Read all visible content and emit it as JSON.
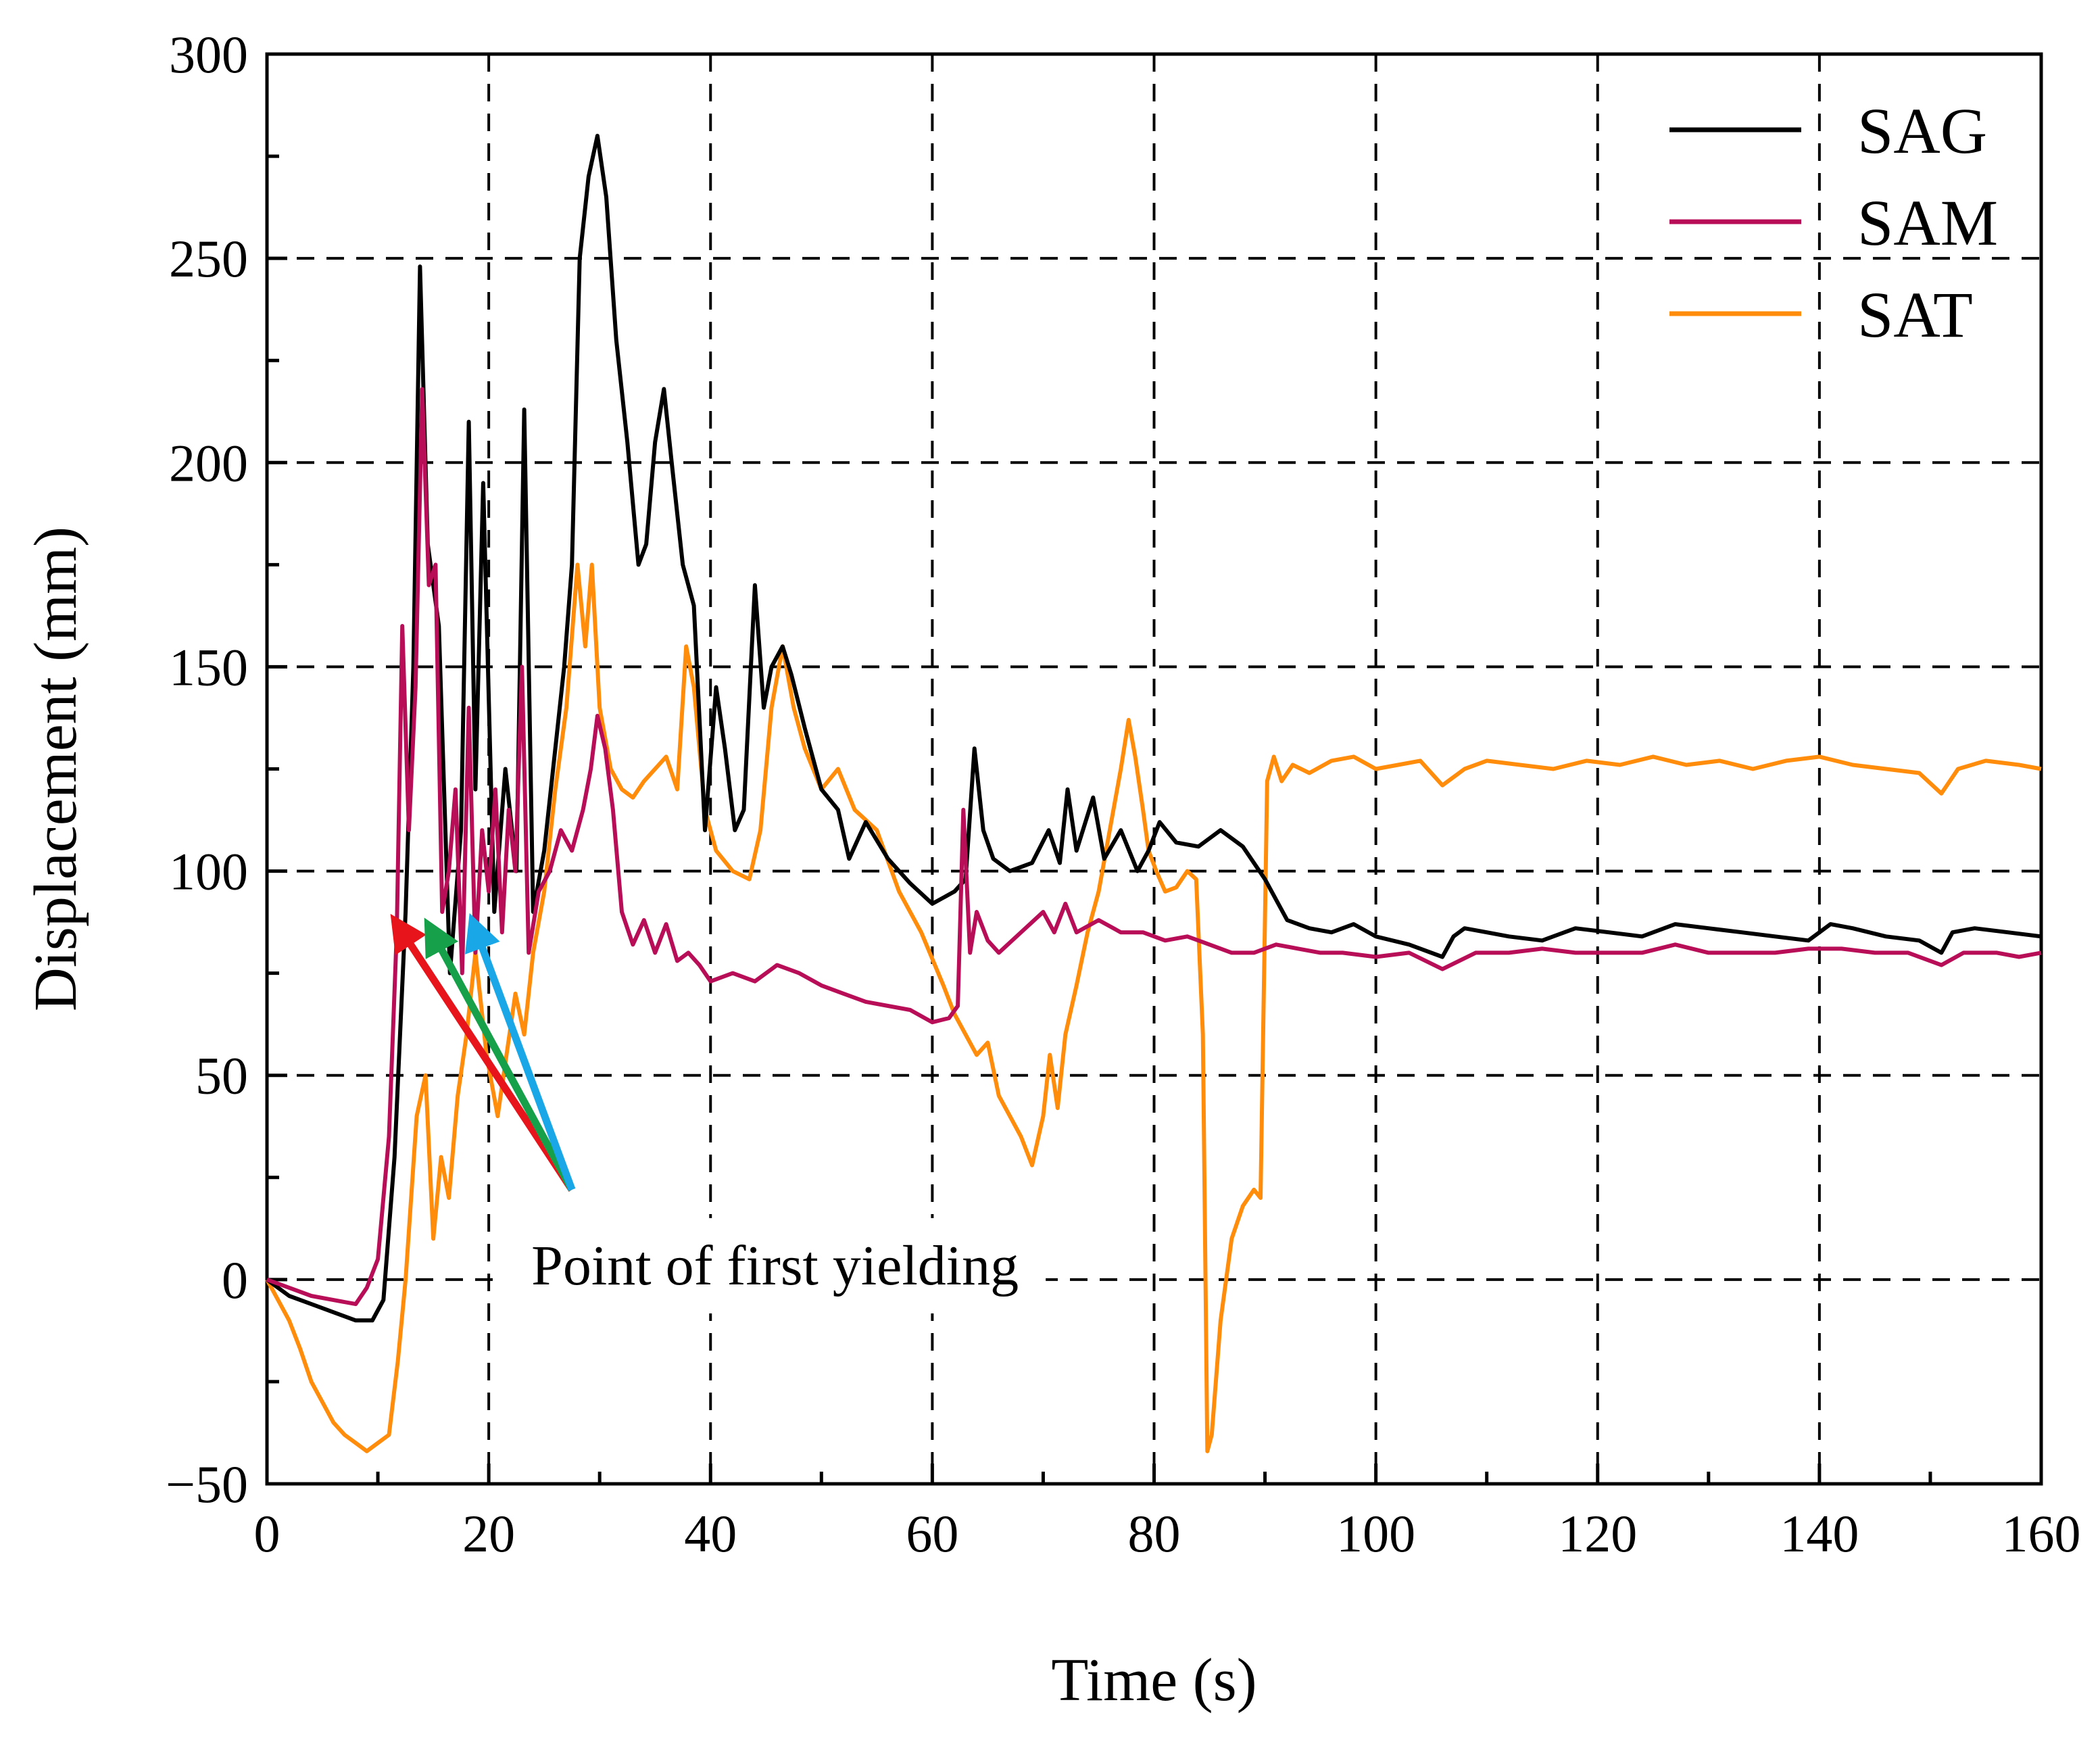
{
  "chart_data": {
    "type": "line",
    "title": "",
    "xlabel": "Time (s)",
    "ylabel": "Displacement (mm)",
    "xlim": [
      0,
      160
    ],
    "ylim": [
      -50,
      300
    ],
    "xticks": [
      0,
      20,
      40,
      60,
      80,
      100,
      120,
      140,
      160
    ],
    "yticks": [
      -50,
      0,
      50,
      100,
      150,
      200,
      250,
      300
    ],
    "xtick_labels": [
      "0",
      "20",
      "40",
      "60",
      "80",
      "100",
      "120",
      "140",
      "160"
    ],
    "ytick_labels": [
      "−50",
      "0",
      "50",
      "100",
      "150",
      "200",
      "250",
      "300"
    ],
    "grid": true,
    "legend_position": "top-right",
    "series": [
      {
        "name": "SAG",
        "color": "#000000",
        "x": [
          0,
          2,
          4,
          6,
          8,
          9.5,
          10.5,
          11.5,
          12.5,
          13.2,
          13.8,
          14.5,
          15.5,
          16.5,
          17.5,
          18.2,
          18.8,
          19.5,
          20.5,
          21.5,
          22.5,
          23.2,
          24,
          25,
          26,
          26.8,
          27.5,
          28.2,
          29,
          29.8,
          30.6,
          31.5,
          32.5,
          33.5,
          34.2,
          35,
          35.8,
          36.5,
          37.5,
          38.5,
          39.5,
          40.5,
          41.3,
          42.2,
          43,
          44,
          44.8,
          45.5,
          46.5,
          47.3,
          48.5,
          50,
          51.5,
          52.5,
          54,
          56,
          58,
          60,
          62,
          63,
          63.8,
          64.6,
          65.5,
          67,
          69,
          70.5,
          71.5,
          72.2,
          73,
          74.5,
          75.5,
          77,
          78.5,
          79.5,
          80.5,
          82,
          84,
          86,
          88,
          90,
          92,
          94,
          96,
          98,
          100,
          103,
          106,
          107,
          108,
          110,
          112,
          115,
          118,
          121,
          124,
          127,
          130,
          133,
          136,
          139,
          141,
          143,
          146,
          149,
          151,
          152,
          154,
          157,
          160
        ],
        "values": [
          0,
          -4,
          -6,
          -8,
          -10,
          -10,
          -5,
          30,
          90,
          150,
          248,
          180,
          160,
          75,
          110,
          210,
          120,
          195,
          90,
          125,
          100,
          213,
          90,
          105,
          130,
          150,
          175,
          250,
          270,
          280,
          265,
          230,
          205,
          175,
          180,
          205,
          218,
          200,
          175,
          165,
          110,
          145,
          130,
          110,
          115,
          170,
          140,
          150,
          155,
          148,
          135,
          120,
          115,
          103,
          112,
          103,
          97,
          92,
          95,
          98,
          130,
          110,
          103,
          100,
          102,
          110,
          102,
          120,
          105,
          118,
          103,
          110,
          100,
          105,
          112,
          107,
          106,
          110,
          106,
          98,
          88,
          86,
          85,
          87,
          84,
          82,
          79,
          84,
          86,
          85,
          84,
          83,
          86,
          85,
          84,
          87,
          86,
          85,
          84,
          83,
          87,
          86,
          84,
          83,
          80,
          85,
          86,
          85,
          84
        ]
      },
      {
        "name": "SAM",
        "color": "#B80D57",
        "x": [
          0,
          2,
          4,
          6,
          8,
          9,
          10,
          11,
          11.7,
          12.2,
          12.8,
          13.4,
          14,
          14.6,
          15.2,
          15.8,
          16.4,
          17,
          17.6,
          18.2,
          18.8,
          19.4,
          20,
          20.6,
          21.2,
          21.8,
          22.4,
          23,
          23.6,
          24.5,
          25.5,
          26.5,
          27.5,
          28.5,
          29.2,
          29.8,
          30.5,
          31.2,
          32,
          33,
          34,
          35,
          36,
          37,
          38,
          39,
          40,
          42,
          44,
          46,
          48,
          50,
          52,
          54,
          56,
          58,
          60,
          61.5,
          62.3,
          62.8,
          63.4,
          64,
          65,
          66,
          68,
          70,
          71,
          72,
          73,
          75,
          77,
          79,
          81,
          83,
          85,
          87,
          89,
          91,
          93,
          95,
          97,
          100,
          103,
          106,
          109,
          112,
          115,
          118,
          121,
          124,
          127,
          130,
          133,
          136,
          139,
          142,
          145,
          148,
          151,
          153,
          156,
          158,
          160
        ],
        "values": [
          0,
          -2,
          -4,
          -5,
          -6,
          -2,
          5,
          35,
          85,
          160,
          110,
          145,
          218,
          170,
          175,
          90,
          100,
          120,
          75,
          140,
          80,
          110,
          95,
          120,
          85,
          115,
          100,
          150,
          80,
          95,
          100,
          110,
          105,
          115,
          125,
          138,
          130,
          115,
          90,
          82,
          88,
          80,
          87,
          78,
          80,
          77,
          73,
          75,
          73,
          77,
          75,
          72,
          70,
          68,
          67,
          66,
          63,
          64,
          67,
          115,
          80,
          90,
          83,
          80,
          85,
          90,
          85,
          92,
          85,
          88,
          85,
          85,
          83,
          84,
          82,
          80,
          80,
          82,
          81,
          80,
          80,
          79,
          80,
          76,
          80,
          80,
          81,
          80,
          80,
          80,
          82,
          80,
          80,
          80,
          81,
          81,
          80,
          80,
          77,
          80,
          80,
          79,
          80
        ]
      },
      {
        "name": "SAT",
        "color": "#FF8C0A",
        "x": [
          0,
          1,
          2,
          3,
          4,
          5,
          6,
          7,
          8,
          9,
          10,
          11,
          11.8,
          12.5,
          13.5,
          14.3,
          15,
          15.7,
          16.4,
          17.2,
          18,
          18.8,
          19.8,
          20.8,
          21.6,
          22.4,
          23.2,
          24,
          25,
          26,
          27,
          28,
          28.7,
          29.3,
          30,
          31,
          32,
          33,
          34,
          35,
          36,
          37,
          37.8,
          38.5,
          39.5,
          40.5,
          42,
          43.5,
          44.5,
          45.5,
          46.5,
          47.5,
          48.5,
          50,
          51.5,
          53,
          55,
          57,
          59,
          61,
          62,
          63,
          64,
          65,
          66,
          67,
          68,
          69,
          70,
          70.6,
          71.3,
          72,
          73,
          74,
          75,
          76,
          77,
          77.7,
          78.3,
          79,
          79.5,
          80.2,
          81,
          82,
          83,
          83.8,
          84.4,
          84.8,
          85.2,
          86,
          87,
          88,
          89,
          89.6,
          90.2,
          90.8,
          91.5,
          92.5,
          94,
          96,
          98,
          100,
          102,
          104,
          106,
          108,
          110,
          113,
          116,
          119,
          122,
          125,
          128,
          131,
          134,
          137,
          140,
          143,
          146,
          149,
          151,
          152.5,
          155,
          158,
          160
        ],
        "values": [
          0,
          -5,
          -10,
          -17,
          -25,
          -30,
          -35,
          -38,
          -40,
          -42,
          -40,
          -38,
          -20,
          0,
          40,
          50,
          10,
          30,
          20,
          45,
          60,
          80,
          55,
          40,
          55,
          70,
          60,
          80,
          95,
          120,
          140,
          175,
          155,
          175,
          140,
          125,
          120,
          118,
          122,
          125,
          128,
          120,
          155,
          145,
          115,
          105,
          100,
          98,
          110,
          140,
          155,
          140,
          130,
          120,
          125,
          115,
          110,
          95,
          85,
          72,
          65,
          60,
          55,
          58,
          45,
          40,
          35,
          28,
          40,
          55,
          42,
          60,
          72,
          85,
          95,
          110,
          125,
          137,
          128,
          115,
          105,
          100,
          95,
          96,
          100,
          98,
          60,
          -42,
          -38,
          -10,
          10,
          18,
          22,
          20,
          122,
          128,
          122,
          126,
          124,
          127,
          128,
          125,
          126,
          127,
          121,
          125,
          127,
          126,
          125,
          127,
          126,
          128,
          126,
          127,
          125,
          127,
          128,
          126,
          125,
          124,
          119,
          125,
          127,
          126,
          125
        ]
      }
    ],
    "annotations": [
      {
        "text": "Point of first yielding",
        "arrows": [
          {
            "color": "#E8141C",
            "to_x": 11.5,
            "to_y": 88
          },
          {
            "color": "#17A04A",
            "to_x": 14.5,
            "to_y": 87
          },
          {
            "color": "#1AA7E8",
            "to_x": 18.5,
            "to_y": 88
          }
        ],
        "from_x": 27.5,
        "from_y": 22
      }
    ]
  }
}
